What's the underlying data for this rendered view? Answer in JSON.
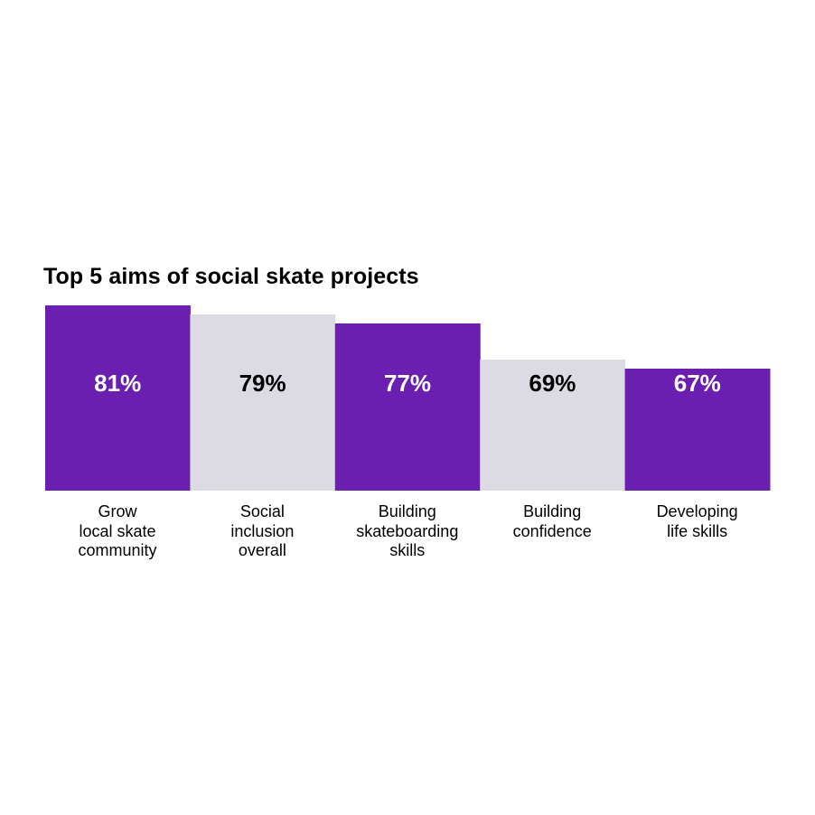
{
  "chart_data": {
    "type": "bar",
    "title": "Top 5 aims of social skate projects",
    "categories": [
      "Grow\nlocal skate\ncommunity",
      "Social\ninclusion\noverall",
      "Building\nskateboarding\nskills",
      "Building\nconfidence",
      "Developing\nlife skills"
    ],
    "values": [
      81,
      79,
      77,
      69,
      67
    ],
    "value_labels": [
      "81%",
      "79%",
      "77%",
      "69%",
      "67%"
    ],
    "unit": "%",
    "colors": {
      "primary_bar": "#6a1fb0",
      "alternate_bar": "#dcdae3",
      "label_on_primary": "#ffffff",
      "label_on_alternate": "#000000"
    },
    "bar_color_pattern": [
      "primary",
      "alternate",
      "primary",
      "alternate",
      "primary"
    ],
    "grid": false,
    "legend": "none",
    "axes_visible": false
  }
}
